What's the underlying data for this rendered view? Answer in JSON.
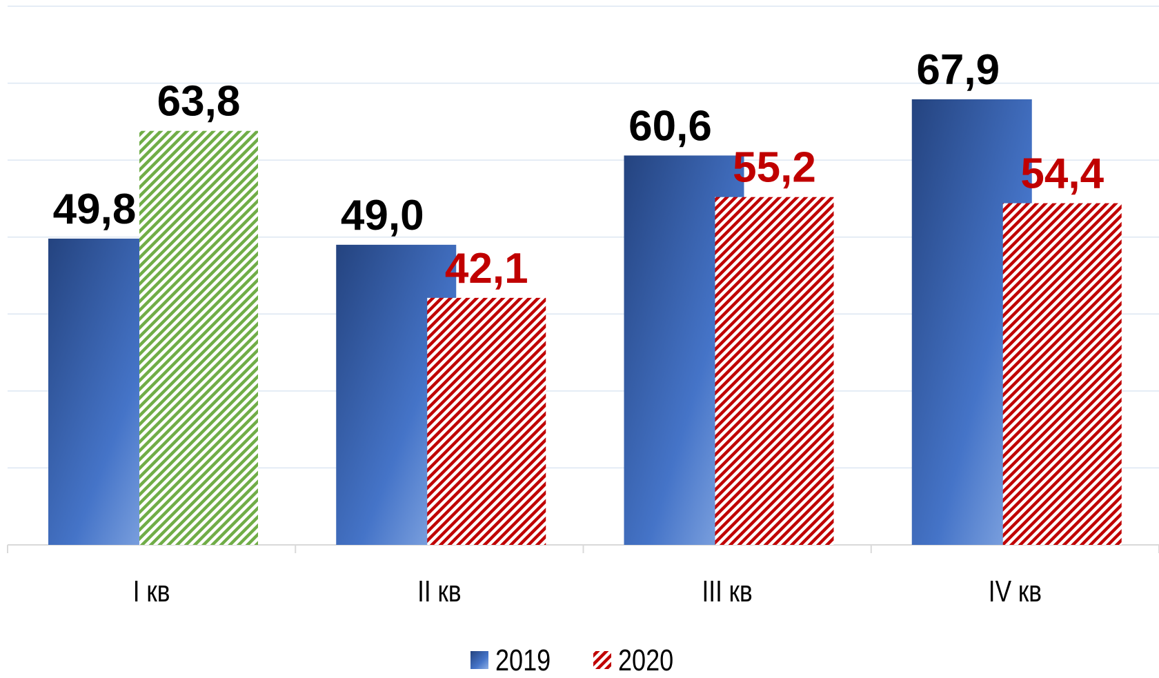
{
  "chart_data": {
    "type": "bar",
    "categories": [
      "I кв",
      "II кв",
      "III кв",
      "IV кв"
    ],
    "series": [
      {
        "name": "2019",
        "color": "#2f5597",
        "values": [
          49.8,
          49.0,
          60.6,
          67.9
        ],
        "value_labels": [
          "49,8",
          "49,0",
          "60,6",
          "67,9"
        ],
        "label_colors": [
          "#000000",
          "#000000",
          "#000000",
          "#000000"
        ]
      },
      {
        "name": "2020",
        "color": "#c00000",
        "values": [
          63.8,
          42.1,
          55.2,
          54.4
        ],
        "value_labels": [
          "63,8",
          "42,1",
          "55,2",
          "54,4"
        ],
        "colors": [
          "#70ad47",
          "#c00000",
          "#c00000",
          "#c00000"
        ],
        "label_colors": [
          "#000000",
          "#c00000",
          "#c00000",
          "#c00000"
        ],
        "hatch": true
      }
    ],
    "ylim": [
      10,
      80
    ],
    "yticks": [
      10,
      20,
      30,
      40,
      50,
      60,
      70,
      80
    ],
    "grid": true,
    "show_ytick_labels": false,
    "legend": "bottom"
  }
}
